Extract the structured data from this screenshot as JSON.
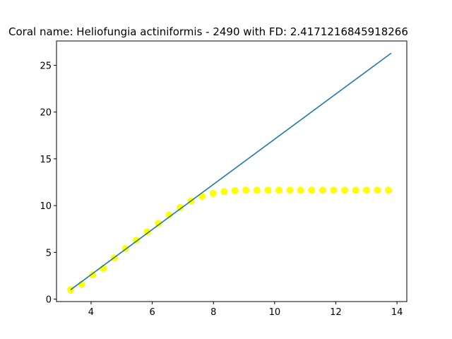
{
  "chart_data": {
    "type": "scatter",
    "title": "Coral name: Heliofungia actiniformis - 2490 with FD: 2.4171216845918266",
    "xlabel": "",
    "ylabel": "",
    "xlim": [
      2.87,
      14.32
    ],
    "ylim": [
      -0.26,
      27.6
    ],
    "xticks": [
      4,
      6,
      8,
      10,
      12,
      14
    ],
    "yticks": [
      0,
      5,
      10,
      15,
      20,
      25
    ],
    "grid": false,
    "legend": "none",
    "series": [
      {
        "kind": "scatter",
        "color": "#ffff00",
        "x": [
          3.33,
          3.69,
          4.05,
          4.4,
          4.76,
          5.12,
          5.48,
          5.84,
          6.2,
          6.55,
          6.91,
          7.27,
          7.63,
          7.99,
          8.35,
          8.7,
          9.06,
          9.42,
          9.78,
          10.14,
          10.5,
          10.85,
          11.21,
          11.57,
          11.93,
          12.29,
          12.65,
          13.0,
          13.36,
          13.72
        ],
        "y": [
          1.0,
          1.6,
          2.6,
          3.3,
          4.4,
          5.4,
          6.3,
          7.2,
          8.1,
          9.0,
          9.8,
          10.5,
          11.0,
          11.3,
          11.5,
          11.6,
          11.65,
          11.65,
          11.65,
          11.65,
          11.65,
          11.65,
          11.65,
          11.65,
          11.65,
          11.65,
          11.65,
          11.65,
          11.65,
          11.65
        ]
      },
      {
        "kind": "line",
        "color": "#1f77b4",
        "x": [
          3.33,
          13.81
        ],
        "y": [
          1.0,
          26.3
        ]
      }
    ]
  }
}
